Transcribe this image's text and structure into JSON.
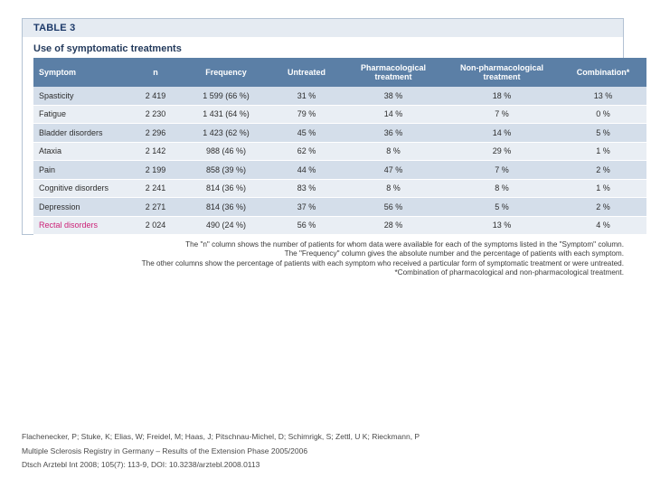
{
  "table": {
    "label": "TABLE 3",
    "title": "Use of symptomatic treatments",
    "headers": [
      "Symptom",
      "n",
      "Frequency",
      "Untreated",
      "Pharmacological treatment",
      "Non-pharmacological treatment",
      "Combination*"
    ],
    "rows": [
      [
        "Spasticity",
        "2 419",
        "1 599 (66 %)",
        "31 %",
        "38 %",
        "18 %",
        "13 %"
      ],
      [
        "Fatigue",
        "2 230",
        "1 431 (64 %)",
        "79 %",
        "14 %",
        "7 %",
        "0 %"
      ],
      [
        "Bladder disorders",
        "2 296",
        "1 423 (62 %)",
        "45 %",
        "36 %",
        "14 %",
        "5 %"
      ],
      [
        "Ataxia",
        "2 142",
        "988 (46 %)",
        "62 %",
        "8 %",
        "29 %",
        "1 %"
      ],
      [
        "Pain",
        "2 199",
        "858 (39 %)",
        "44 %",
        "47 %",
        "7 %",
        "2 %"
      ],
      [
        "Cognitive disorders",
        "2 241",
        "814 (36 %)",
        "83 %",
        "8 %",
        "8 %",
        "1 %"
      ],
      [
        "Depression",
        "2 271",
        "814 (36 %)",
        "37 %",
        "56 %",
        "5 %",
        "2 %"
      ],
      [
        "Rectal disorders",
        "2 024",
        "490 (24 %)",
        "56 %",
        "28 %",
        "13 %",
        "4 %"
      ]
    ]
  },
  "notes": [
    "The \"n\" column shows the number of patients for whom data were available for each of the symptoms listed in the \"Symptom\" column.",
    "The \"Frequency\" column gives the absolute number and the percentage of patients with each symptom.",
    "The other columns show the percentage of patients with each symptom who received a particular form of symptomatic treatment or were untreated.",
    "*Combination of pharmacological and non-pharmacological treatment."
  ],
  "citation": [
    "Flachenecker, P; Stuke, K; Elias, W; Freidel, M; Haas, J; Pitschnau-Michel, D; Schimrigk, S; Zettl, U K; Rieckmann, P",
    "Multiple Sclerosis Registry in Germany – Results of the Extension Phase 2005/2006",
    "Dtsch Arztebl Int 2008; 105(7): 113-9, DOI: 10.3238/arztebl.2008.0113"
  ],
  "colors": {
    "header_bg": "#5b7fa6",
    "row_odd": "#d4deea",
    "row_even": "#e9eef4",
    "label_text": "#1d3a6a",
    "highlight_row_text": "#cc2277"
  }
}
